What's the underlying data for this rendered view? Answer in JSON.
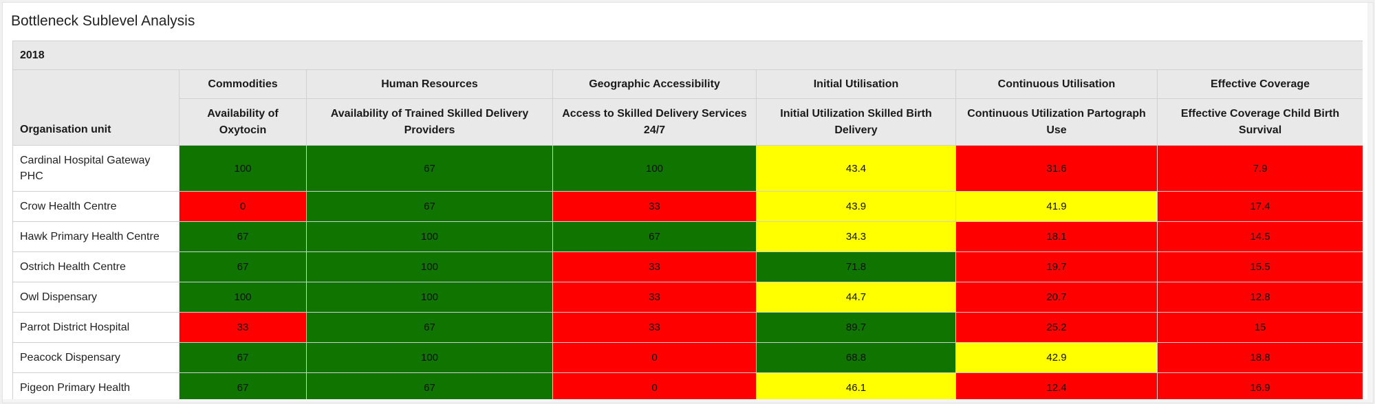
{
  "title": "Bottleneck Sublevel Analysis",
  "table": {
    "year": "2018",
    "org_header": "Organisation unit",
    "groups": [
      "Commodities",
      "Human Resources",
      "Geographic Accessibility",
      "Initial Utilisation",
      "Continuous Utilisation",
      "Effective Coverage"
    ],
    "indicators": [
      "Availability of Oxytocin",
      "Availability of Trained Skilled Delivery Providers",
      "Access to Skilled Delivery Services 24/7",
      "Initial Utilization Skilled Birth Delivery",
      "Continuous Utilization Partograph Use",
      "Effective Coverage Child Birth Survival"
    ],
    "colors": {
      "green": "#107400",
      "red": "#ff0000",
      "yellow": "#ffff00"
    },
    "rows": [
      {
        "name": "Cardinal Hospital Gateway PHC",
        "cells": [
          {
            "v": "100",
            "c": "green"
          },
          {
            "v": "67",
            "c": "green"
          },
          {
            "v": "100",
            "c": "green"
          },
          {
            "v": "43.4",
            "c": "yellow"
          },
          {
            "v": "31.6",
            "c": "red"
          },
          {
            "v": "7.9",
            "c": "red"
          }
        ]
      },
      {
        "name": "Crow Health Centre",
        "cells": [
          {
            "v": "0",
            "c": "red"
          },
          {
            "v": "67",
            "c": "green"
          },
          {
            "v": "33",
            "c": "red"
          },
          {
            "v": "43.9",
            "c": "yellow"
          },
          {
            "v": "41.9",
            "c": "yellow"
          },
          {
            "v": "17.4",
            "c": "red"
          }
        ]
      },
      {
        "name": "Hawk Primary Health Centre",
        "cells": [
          {
            "v": "67",
            "c": "green"
          },
          {
            "v": "100",
            "c": "green"
          },
          {
            "v": "67",
            "c": "green"
          },
          {
            "v": "34.3",
            "c": "yellow"
          },
          {
            "v": "18.1",
            "c": "red"
          },
          {
            "v": "14.5",
            "c": "red"
          }
        ]
      },
      {
        "name": "Ostrich Health Centre",
        "cells": [
          {
            "v": "67",
            "c": "green"
          },
          {
            "v": "100",
            "c": "green"
          },
          {
            "v": "33",
            "c": "red"
          },
          {
            "v": "71.8",
            "c": "green"
          },
          {
            "v": "19.7",
            "c": "red"
          },
          {
            "v": "15.5",
            "c": "red"
          }
        ]
      },
      {
        "name": "Owl Dispensary",
        "cells": [
          {
            "v": "100",
            "c": "green"
          },
          {
            "v": "100",
            "c": "green"
          },
          {
            "v": "33",
            "c": "red"
          },
          {
            "v": "44.7",
            "c": "yellow"
          },
          {
            "v": "20.7",
            "c": "red"
          },
          {
            "v": "12.8",
            "c": "red"
          }
        ]
      },
      {
        "name": "Parrot District Hospital",
        "cells": [
          {
            "v": "33",
            "c": "red"
          },
          {
            "v": "67",
            "c": "green"
          },
          {
            "v": "33",
            "c": "red"
          },
          {
            "v": "89.7",
            "c": "green"
          },
          {
            "v": "25.2",
            "c": "red"
          },
          {
            "v": "15",
            "c": "red"
          }
        ]
      },
      {
        "name": "Peacock Dispensary",
        "cells": [
          {
            "v": "67",
            "c": "green"
          },
          {
            "v": "100",
            "c": "green"
          },
          {
            "v": "0",
            "c": "red"
          },
          {
            "v": "68.8",
            "c": "green"
          },
          {
            "v": "42.9",
            "c": "yellow"
          },
          {
            "v": "18.8",
            "c": "red"
          }
        ]
      },
      {
        "name": "Pigeon Primary Health",
        "cells": [
          {
            "v": "67",
            "c": "green"
          },
          {
            "v": "67",
            "c": "green"
          },
          {
            "v": "0",
            "c": "red"
          },
          {
            "v": "46.1",
            "c": "yellow"
          },
          {
            "v": "12.4",
            "c": "red"
          },
          {
            "v": "16.9",
            "c": "red"
          }
        ]
      }
    ]
  }
}
